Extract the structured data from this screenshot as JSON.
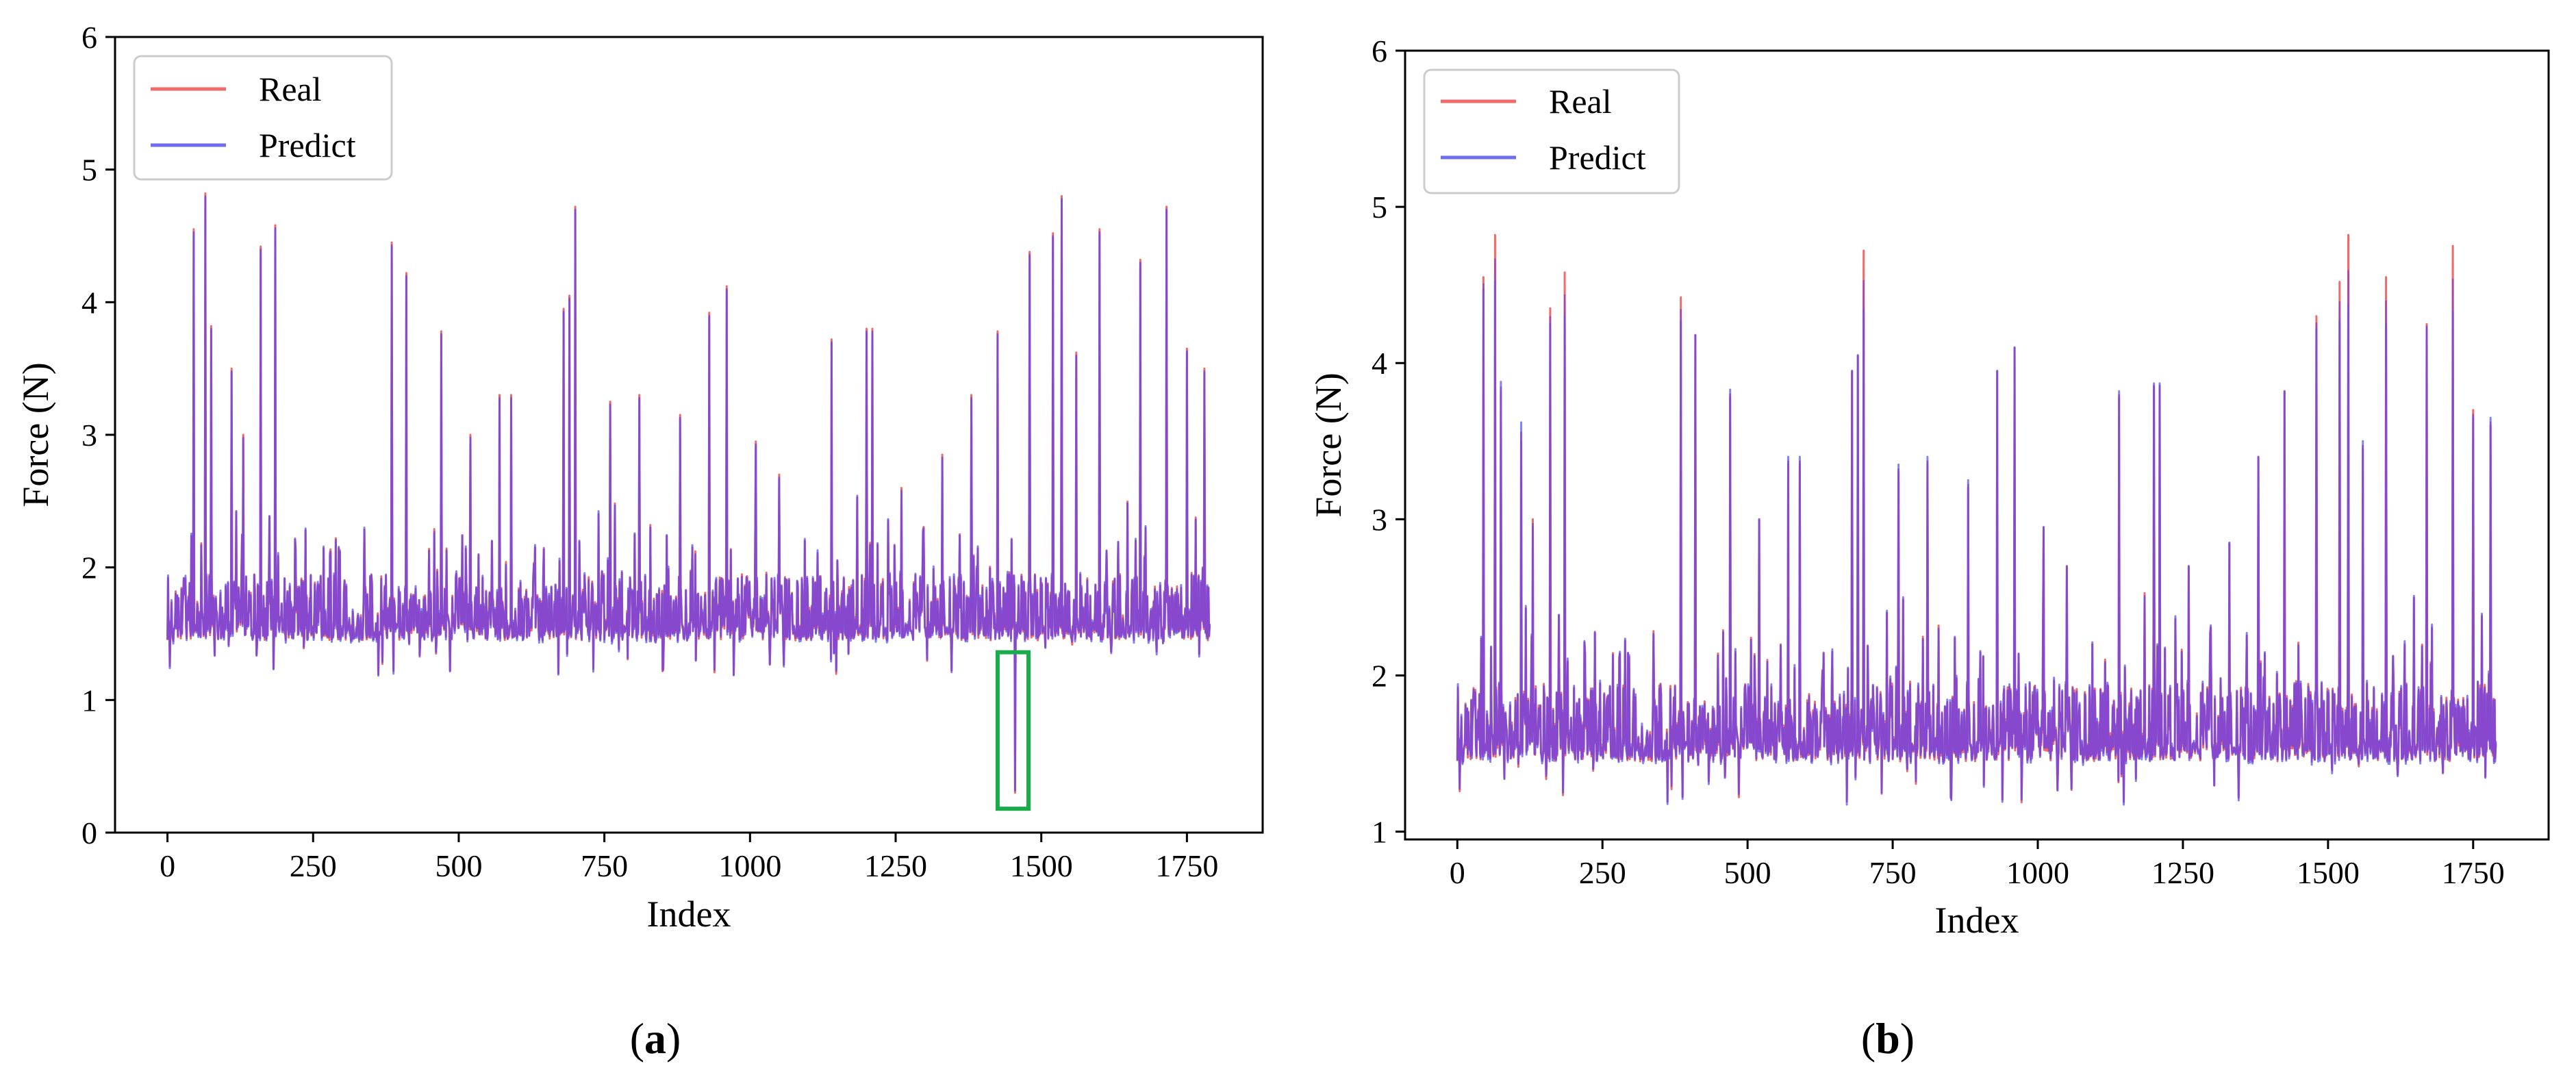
{
  "chart_data": [
    {
      "type": "line",
      "panel_label": "(a)",
      "panel_letter": "a",
      "xlabel": "Index",
      "ylabel": "Force (N)",
      "xlim": [
        -90,
        1880
      ],
      "ylim": [
        0,
        6
      ],
      "xticks": [
        0,
        250,
        500,
        750,
        1000,
        1250,
        1500,
        1750
      ],
      "yticks": [
        0,
        1,
        2,
        3,
        4,
        5,
        6
      ],
      "legend": {
        "position": "top-left",
        "entries": [
          "Real",
          "Predict"
        ]
      },
      "series": [
        {
          "name": "Real",
          "color": "#f06a6a"
        },
        {
          "name": "Predict",
          "color": "#6d6dee"
        }
      ],
      "baseline": {
        "low": 1.45,
        "high": 1.95,
        "min": 1.18,
        "max": 2.25
      },
      "spikes": [
        [
          45,
          4.55
        ],
        [
          65,
          4.82
        ],
        [
          75,
          3.82
        ],
        [
          110,
          3.5
        ],
        [
          130,
          3.0
        ],
        [
          160,
          4.42
        ],
        [
          185,
          4.58
        ],
        [
          385,
          4.45
        ],
        [
          410,
          4.22
        ],
        [
          470,
          3.78
        ],
        [
          520,
          3.0
        ],
        [
          570,
          3.3
        ],
        [
          590,
          3.3
        ],
        [
          680,
          3.95
        ],
        [
          690,
          4.05
        ],
        [
          700,
          4.72
        ],
        [
          760,
          3.25
        ],
        [
          810,
          3.3
        ],
        [
          880,
          3.15
        ],
        [
          930,
          3.92
        ],
        [
          960,
          4.12
        ],
        [
          1010,
          2.95
        ],
        [
          1050,
          2.7
        ],
        [
          1140,
          3.72
        ],
        [
          1200,
          3.8
        ],
        [
          1210,
          3.8
        ],
        [
          1260,
          2.6
        ],
        [
          1330,
          2.85
        ],
        [
          1380,
          3.3
        ],
        [
          1425,
          3.78
        ],
        [
          1480,
          4.38
        ],
        [
          1520,
          4.52
        ],
        [
          1535,
          4.8
        ],
        [
          1560,
          3.62
        ],
        [
          1600,
          4.55
        ],
        [
          1670,
          4.32
        ],
        [
          1715,
          4.72
        ],
        [
          1750,
          3.65
        ],
        [
          1780,
          3.5
        ]
      ],
      "annotation": {
        "shape": "box",
        "color": "#1aab4a",
        "x_range": [
          1425,
          1478
        ],
        "y_range": [
          0.18,
          1.36
        ],
        "dip_index": 1455,
        "dip_value": 0.3
      }
    },
    {
      "type": "line",
      "panel_label": "(b)",
      "panel_letter": "b",
      "xlabel": "Index",
      "ylabel": "Force (N)",
      "xlim": [
        -90,
        1880
      ],
      "ylim": [
        0.95,
        6
      ],
      "xticks": [
        0,
        250,
        500,
        750,
        1000,
        1250,
        1500,
        1750
      ],
      "yticks": [
        1,
        2,
        3,
        4,
        5,
        6
      ],
      "legend": {
        "position": "top-left",
        "entries": [
          "Real",
          "Predict"
        ]
      },
      "series": [
        {
          "name": "Real",
          "color": "#f06a6a"
        },
        {
          "name": "Predict",
          "color": "#6d6dee"
        }
      ],
      "baseline": {
        "low": 1.45,
        "high": 1.95,
        "min": 1.18,
        "max": 2.25
      },
      "spikes": [
        [
          45,
          4.55
        ],
        [
          65,
          4.82
        ],
        [
          75,
          3.82
        ],
        [
          110,
          3.5
        ],
        [
          130,
          3.0
        ],
        [
          160,
          4.35
        ],
        [
          185,
          4.58
        ],
        [
          385,
          4.42
        ],
        [
          410,
          4.18
        ],
        [
          470,
          3.78
        ],
        [
          520,
          3.0
        ],
        [
          570,
          3.35
        ],
        [
          590,
          3.35
        ],
        [
          680,
          3.95
        ],
        [
          690,
          4.05
        ],
        [
          700,
          4.72
        ],
        [
          760,
          3.3
        ],
        [
          810,
          3.35
        ],
        [
          880,
          3.2
        ],
        [
          930,
          3.95
        ],
        [
          960,
          4.1
        ],
        [
          1010,
          2.95
        ],
        [
          1050,
          2.7
        ],
        [
          1140,
          3.78
        ],
        [
          1200,
          3.85
        ],
        [
          1210,
          3.85
        ],
        [
          1260,
          2.7
        ],
        [
          1330,
          2.85
        ],
        [
          1380,
          3.4
        ],
        [
          1425,
          3.82
        ],
        [
          1480,
          4.3
        ],
        [
          1520,
          4.52
        ],
        [
          1535,
          4.82
        ],
        [
          1560,
          3.45
        ],
        [
          1600,
          4.55
        ],
        [
          1670,
          4.25
        ],
        [
          1715,
          4.75
        ],
        [
          1750,
          3.7
        ],
        [
          1780,
          3.6
        ]
      ],
      "predict_offsets": [
        -0.08,
        -0.3,
        0.06,
        0.12,
        -0.05,
        -0.1,
        -0.28,
        -0.15,
        0.0,
        0.05,
        0.0,
        0.05,
        0.05,
        0.0,
        0.0,
        -0.38,
        0.05,
        0.05,
        0.05,
        0.0,
        0.0,
        0.0,
        0.0,
        0.04,
        0.02,
        0.02,
        0.0,
        0.0,
        0.0,
        0.0,
        -0.08,
        -0.25,
        -0.45,
        0.05,
        -0.3,
        -0.02,
        -0.42,
        -0.05,
        0.05
      ]
    }
  ]
}
